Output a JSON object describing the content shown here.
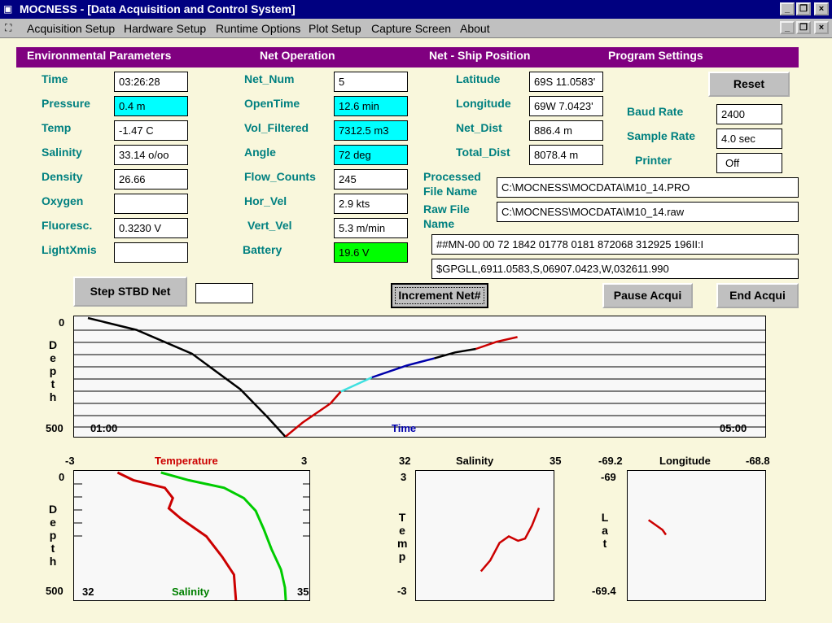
{
  "window": {
    "title": "MOCNESS - [Data Acquisition and Control System]"
  },
  "menu": [
    "Acquisition Setup",
    "Hardware Setup",
    "Runtime Options",
    "Plot Setup",
    "Capture Screen",
    "About"
  ],
  "sections": {
    "env": "Environmental Parameters",
    "net": "Net Operation",
    "pos": "Net - Ship Position",
    "prog": "Program Settings"
  },
  "env": [
    {
      "label": "Time",
      "value": "03:26:28"
    },
    {
      "label": "Pressure",
      "value": "0.4 m"
    },
    {
      "label": "Temp",
      "value": "-1.47 C"
    },
    {
      "label": "Salinity",
      "value": "33.14 o/oo"
    },
    {
      "label": "Density",
      "value": "26.66"
    },
    {
      "label": "Oxygen",
      "value": ""
    },
    {
      "label": "Fluoresc.",
      "value": "0.3230 V"
    },
    {
      "label": "LightXmis",
      "value": ""
    }
  ],
  "net": [
    {
      "label": "Net_Num",
      "value": "5"
    },
    {
      "label": "OpenTime",
      "value": "12.6 min"
    },
    {
      "label": "Vol_Filtered",
      "value": "7312.5 m3"
    },
    {
      "label": "Angle",
      "value": "72 deg"
    },
    {
      "label": "Flow_Counts",
      "value": "245"
    },
    {
      "label": "Hor_Vel",
      "value": "2.9 kts"
    },
    {
      "label": "Vert_Vel",
      "value": "5.3 m/min"
    },
    {
      "label": "Battery",
      "value": "19.6 V"
    }
  ],
  "pos": [
    {
      "label": "Latitude",
      "value": "69S 11.0583'"
    },
    {
      "label": "Longitude",
      "value": "69W 7.0423'"
    },
    {
      "label": "Net_Dist",
      "value": "886.4 m"
    },
    {
      "label": "Total_Dist",
      "value": "8078.4 m"
    }
  ],
  "prog": {
    "reset": "Reset",
    "baud_label": "Baud Rate",
    "baud": "2400",
    "sample_label": "Sample Rate",
    "sample": "4.0 sec",
    "printer_label": "Printer",
    "printer": "Off"
  },
  "files": {
    "processed_label_1": "Processed",
    "processed_label_2": "File Name",
    "processed": "C:\\MOCNESS\\MOCDATA\\M10_14.PRO",
    "raw_label_1": "Raw File",
    "raw_label_2": "Name",
    "raw": "C:\\MOCNESS\\MOCDATA\\M10_14.raw",
    "stream1": "##MN-00 00 72 1842 01778 0181 872068 312925 196II:I",
    "stream2": "$GPGLL,6911.0583,S,06907.0423,W,032611.990"
  },
  "buttons": {
    "step": "Step STBD Net",
    "step_value": "",
    "increment": "Increment Net#",
    "pause": "Pause Acqui",
    "end": "End Acqui"
  },
  "colors": {
    "title_bar": "#000080",
    "header": "#800080",
    "label": "#008080",
    "cyan": "#00ffff",
    "green": "#00ff00",
    "background": "#f9f7dc"
  },
  "chart_data": [
    {
      "type": "line",
      "name": "depth-time",
      "ylabel": "Depth",
      "xlabel": "Time",
      "xlim_labels": [
        "01:00",
        "05:00"
      ],
      "ylim": [
        0,
        500
      ],
      "y_ticks": [
        "0",
        "500"
      ],
      "grid": true,
      "series": [
        {
          "color": "#000000",
          "points": [
            [
              0.02,
              0
            ],
            [
              0.09,
              50
            ],
            [
              0.17,
              150
            ],
            [
              0.24,
              300
            ],
            [
              0.28,
              420
            ],
            [
              0.305,
              500
            ]
          ]
        },
        {
          "color": "#cc0000",
          "points": [
            [
              0.305,
              500
            ],
            [
              0.33,
              440
            ],
            [
              0.37,
              360
            ],
            [
              0.385,
              310
            ]
          ]
        },
        {
          "color": "#40e0e0",
          "points": [
            [
              0.385,
              310
            ],
            [
              0.43,
              250
            ]
          ]
        },
        {
          "color": "#0000aa",
          "points": [
            [
              0.43,
              250
            ],
            [
              0.48,
              200
            ],
            [
              0.52,
              170
            ]
          ]
        },
        {
          "color": "#000000",
          "points": [
            [
              0.52,
              170
            ],
            [
              0.55,
              145
            ],
            [
              0.58,
              130
            ]
          ]
        },
        {
          "color": "#cc0000",
          "points": [
            [
              0.58,
              130
            ],
            [
              0.61,
              100
            ],
            [
              0.64,
              80
            ]
          ]
        }
      ]
    },
    {
      "type": "line",
      "name": "temperature-salinity-profile",
      "title": "Temperature",
      "xlim": [
        -3,
        3
      ],
      "x2label": "Salinity",
      "x2lim": [
        32,
        35
      ],
      "ylabel": "Depth",
      "ylim": [
        0,
        500
      ],
      "series": [
        {
          "name": "Temperature",
          "color": "#cc0000",
          "depth": [
            0,
            30,
            60,
            100,
            140,
            180,
            250,
            330,
            400,
            500
          ],
          "x": [
            -1.9,
            -1.5,
            -0.7,
            -0.5,
            -0.6,
            -0.3,
            0.35,
            0.75,
            1.05,
            1.1
          ]
        },
        {
          "name": "Salinity",
          "color": "#00cc00",
          "depth": [
            0,
            30,
            60,
            100,
            150,
            220,
            300,
            380,
            450,
            500
          ],
          "x": [
            33.1,
            33.45,
            33.9,
            34.15,
            34.3,
            34.4,
            34.5,
            34.62,
            34.67,
            34.68
          ]
        }
      ]
    },
    {
      "type": "scatter",
      "name": "temperature-salinity",
      "title": "Salinity",
      "xlim": [
        32,
        35
      ],
      "ylabel": "Temp",
      "ylim": [
        -3,
        3
      ],
      "series": [
        {
          "color": "#cc0000",
          "x": [
            33.4,
            33.6,
            33.8,
            34.0,
            34.2,
            34.35,
            34.5,
            34.65
          ],
          "y": [
            -1.6,
            -1.1,
            -0.3,
            0.0,
            -0.2,
            -0.1,
            0.5,
            1.3
          ]
        }
      ]
    },
    {
      "type": "scatter",
      "name": "lat-lon",
      "title": "Longitude",
      "xlim": [
        -69.2,
        -68.8
      ],
      "ylabel": "Lat",
      "ylim": [
        -69.4,
        -69.0
      ],
      "series": [
        {
          "color": "#cc0000",
          "x": [
            -69.14,
            -69.12,
            -69.1,
            -69.09
          ],
          "y": [
            -69.15,
            -69.165,
            -69.18,
            -69.195
          ]
        }
      ]
    }
  ]
}
